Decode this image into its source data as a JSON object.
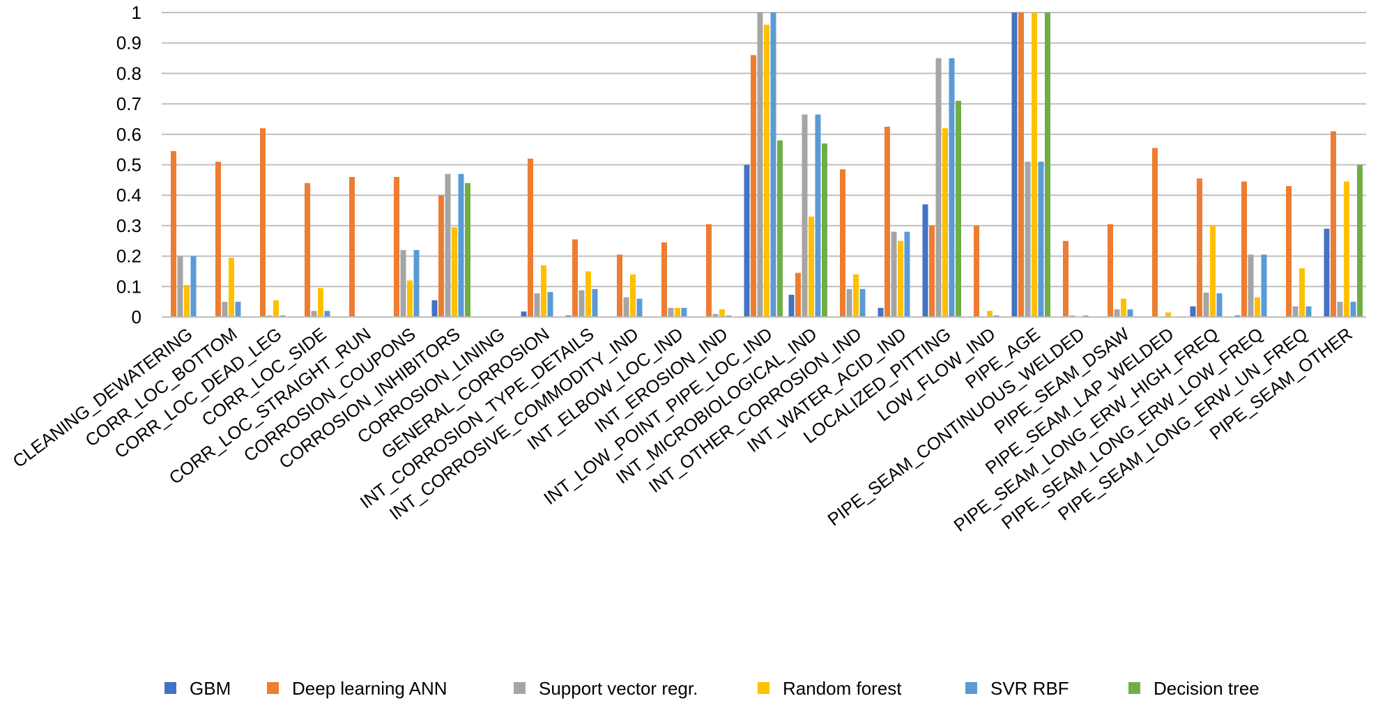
{
  "chart_data": {
    "type": "bar",
    "title": "",
    "xlabel": "",
    "ylabel": "",
    "ylim": [
      0,
      1
    ],
    "yticks": [
      "0",
      "0.1",
      "0.2",
      "0.3",
      "0.4",
      "0.5",
      "0.6",
      "0.7",
      "0.8",
      "0.9",
      "1"
    ],
    "grid": true,
    "legend_position": "bottom",
    "categories": [
      "CLEANING_DEWATERING",
      "CORR_LOC_BOTTOM",
      "CORR_LOC_DEAD_LEG",
      "CORR_LOC_SIDE",
      "CORR_LOC_STRAIGHT_RUN",
      "CORROSION_COUPONS",
      "CORROSION_INHIBITORS",
      "CORROSION_LINING",
      "GENERAL_CORROSION",
      "INT_CORROSION_TYPE_DETAILS",
      "INT_CORROSIVE_COMMODITY_IND",
      "INT_ELBOW_LOC_IND",
      "INT_EROSION_IND",
      "INT_LOW_POINT_PIPE_LOC_IND",
      "INT_MICROBIOLOGICAL_IND",
      "INT_OTHER_CORROSION_IND",
      "INT_WATER_ACID_IND",
      "LOCALIZED_PITTING",
      "LOW_FLOW_IND",
      "PIPE_AGE",
      "PIPE_SEAM_CONTINUOUS_WELDED",
      "PIPE_SEAM_DSAW",
      "PIPE_SEAM_LAP_WELDED",
      "PIPE_SEAM_LONG_ERW_HIGH_FREQ",
      "PIPE_SEAM_LONG_ERW_LOW_FREQ",
      "PIPE_SEAM_LONG_ERW_UN_FREQ",
      "PIPE_SEAM_OTHER"
    ],
    "series": [
      {
        "name": "GBM",
        "color": "#4472c4",
        "values": [
          0,
          0,
          0,
          0,
          0,
          0,
          0.055,
          0,
          0.018,
          0.005,
          0,
          0,
          0,
          0.5,
          0.073,
          0,
          0.03,
          0.37,
          0,
          1.0,
          0,
          0,
          0,
          0.035,
          0.005,
          0,
          0.29
        ]
      },
      {
        "name": "Deep learning ANN",
        "color": "#ed7d31",
        "values": [
          0.545,
          0.51,
          0.62,
          0.44,
          0.46,
          0.46,
          0.4,
          0,
          0.52,
          0.255,
          0.205,
          0.245,
          0.305,
          0.86,
          0.145,
          0.485,
          0.625,
          0.3,
          0.3,
          1.0,
          0.25,
          0.305,
          0.555,
          0.455,
          0.445,
          0.43,
          0.61
        ]
      },
      {
        "name": "Support vector regr.",
        "color": "#a5a5a5",
        "values": [
          0.2,
          0.05,
          0.005,
          0.02,
          0,
          0.22,
          0.47,
          0,
          0.078,
          0.088,
          0.065,
          0.03,
          0.01,
          1.0,
          0.665,
          0.092,
          0.28,
          0.85,
          0,
          0.51,
          0.005,
          0.025,
          0,
          0.08,
          0.205,
          0.035,
          0.05
        ]
      },
      {
        "name": "Random forest",
        "color": "#ffc000",
        "values": [
          0.105,
          0.195,
          0.055,
          0.095,
          0,
          0.12,
          0.295,
          0,
          0.17,
          0.15,
          0.14,
          0.03,
          0.025,
          0.96,
          0.33,
          0.14,
          0.25,
          0.62,
          0.02,
          1.0,
          0,
          0.06,
          0.015,
          0.3,
          0.065,
          0.16,
          0.445
        ]
      },
      {
        "name": "SVR RBF",
        "color": "#5b9bd5",
        "values": [
          0.2,
          0.05,
          0.005,
          0.02,
          0,
          0.22,
          0.47,
          0,
          0.082,
          0.092,
          0.06,
          0.03,
          0.005,
          1.0,
          0.665,
          0.092,
          0.28,
          0.85,
          0.005,
          0.51,
          0.005,
          0.025,
          0,
          0.078,
          0.205,
          0.035,
          0.05
        ]
      },
      {
        "name": "Decision tree",
        "color": "#70ad47",
        "values": [
          0,
          0,
          0,
          0,
          0,
          0,
          0.44,
          0,
          0,
          0,
          0,
          0,
          0,
          0.58,
          0.57,
          0,
          0,
          0.71,
          0,
          1.0,
          0,
          0,
          0,
          0,
          0,
          0,
          0.5
        ]
      }
    ]
  }
}
